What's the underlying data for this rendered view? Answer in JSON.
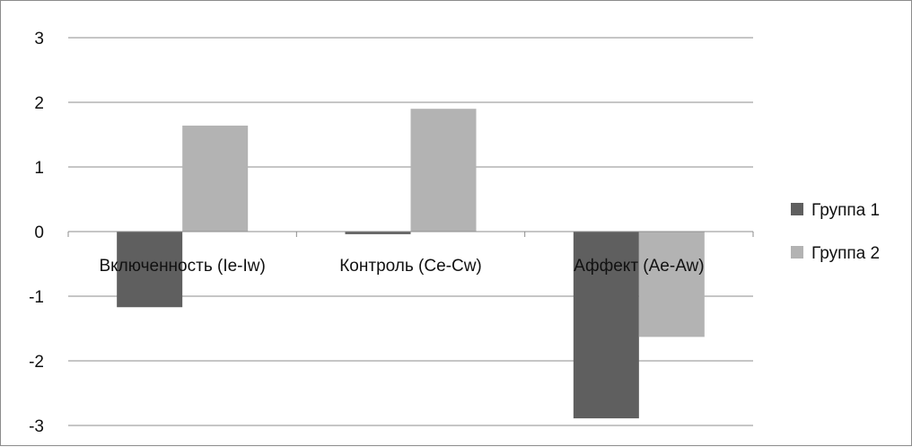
{
  "chart_data": {
    "type": "bar",
    "categories": [
      "Включенность (Ie-Iw)",
      "Контроль (Ce-Cw)",
      "Аффект (Ae-Aw)"
    ],
    "series": [
      {
        "name": "Группа 1",
        "values": [
          -1.17,
          -0.04,
          -2.89
        ],
        "color": "#5f5f5f"
      },
      {
        "name": "Группа 2",
        "values": [
          1.64,
          1.9,
          -1.63
        ],
        "color": "#b3b3b3"
      }
    ],
    "ylim": [
      -3,
      3
    ],
    "yticks": [
      "3",
      "2",
      "1",
      "0",
      "-1",
      "-2",
      "-3"
    ],
    "title": "",
    "xlabel": "",
    "ylabel": "",
    "grid": true,
    "legend_position": "right",
    "gridline_color": "#8c8c8c"
  }
}
